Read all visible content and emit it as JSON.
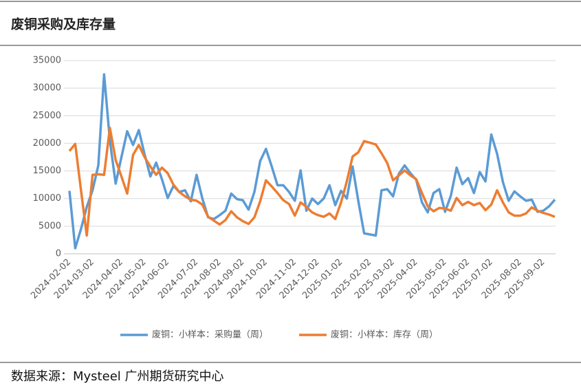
{
  "page_title": "废铜采购及库存量",
  "source": "数据来源：Mysteel 广州期货研究中心",
  "chart_data": {
    "type": "line",
    "categories": [
      "2024-02-02",
      null,
      null,
      null,
      "2024-03-02",
      null,
      null,
      null,
      null,
      "2024-04-02",
      null,
      null,
      null,
      "2024-05-02",
      null,
      null,
      null,
      "2024-06-02",
      null,
      null,
      null,
      null,
      "2024-07-02",
      null,
      null,
      null,
      "2024-08-02",
      null,
      null,
      null,
      "2024-09-02",
      null,
      null,
      null,
      "2024-10-02",
      null,
      null,
      null,
      null,
      "2024-11-02",
      null,
      null,
      null,
      "2024-12-02",
      null,
      null,
      null,
      "2025-01-02",
      null,
      null,
      null,
      null,
      "2025-02-02",
      null,
      null,
      null,
      "2025-03-02",
      null,
      null,
      null,
      "2025-04-02",
      null,
      null,
      null,
      null,
      "2025-05-02",
      null,
      null,
      null,
      "2025-06-02",
      null,
      null,
      null,
      "2025-07-02",
      null,
      null,
      null,
      null,
      "2025-08-02",
      null,
      null,
      null,
      "2025-09-02",
      null,
      null
    ],
    "series": [
      {
        "name": "废铜：小样本：采购量（周）",
        "color": "#5b9bd5",
        "values": [
          11400,
          1000,
          4500,
          8500,
          11500,
          16000,
          32500,
          20500,
          12700,
          17500,
          22200,
          19700,
          22400,
          18000,
          14000,
          16500,
          13500,
          10100,
          12300,
          11200,
          11500,
          9500,
          14300,
          10000,
          6600,
          6300,
          7000,
          7800,
          10900,
          9900,
          9700,
          8000,
          11200,
          16800,
          19000,
          15800,
          12400,
          12400,
          11200,
          9600,
          15100,
          7800,
          10000,
          9000,
          10000,
          12400,
          8800,
          11400,
          10000,
          15800,
          9500,
          3700,
          3500,
          3300,
          11500,
          11700,
          10400,
          14500,
          16000,
          14600,
          13400,
          9300,
          7500,
          11000,
          11700,
          7600,
          10500,
          15600,
          12600,
          13700,
          11000,
          14800,
          13100,
          21600,
          18100,
          13000,
          9600,
          11300,
          10400,
          9600,
          9800,
          7600,
          7800,
          8600,
          9800
        ]
      },
      {
        "name": "废铜：小样本：库存（周）",
        "color": "#ed7d31",
        "values": [
          18600,
          19900,
          11500,
          3300,
          14300,
          14400,
          14300,
          22800,
          17000,
          14000,
          10900,
          17900,
          19700,
          17500,
          15800,
          14300,
          15600,
          14600,
          12500,
          11200,
          10400,
          9800,
          9600,
          8900,
          6700,
          6000,
          5300,
          6100,
          7700,
          6600,
          5900,
          5400,
          6600,
          9500,
          13300,
          12200,
          11000,
          9700,
          9000,
          6900,
          9300,
          8500,
          7500,
          7000,
          6700,
          7300,
          6300,
          9300,
          13100,
          17600,
          18400,
          20400,
          20100,
          19800,
          18200,
          16400,
          13300,
          14200,
          15100,
          14200,
          13500,
          11000,
          8600,
          7700,
          8300,
          8200,
          7800,
          10100,
          8800,
          9400,
          8800,
          9200,
          7900,
          8900,
          11500,
          9300,
          7500,
          6900,
          6900,
          7300,
          8400,
          7800,
          7400,
          7100,
          6700
        ]
      }
    ],
    "ylim": [
      0,
      35000
    ],
    "yticks": [
      0,
      5000,
      10000,
      15000,
      20000,
      25000,
      30000,
      35000
    ],
    "grid": true,
    "legend": "bottom"
  }
}
